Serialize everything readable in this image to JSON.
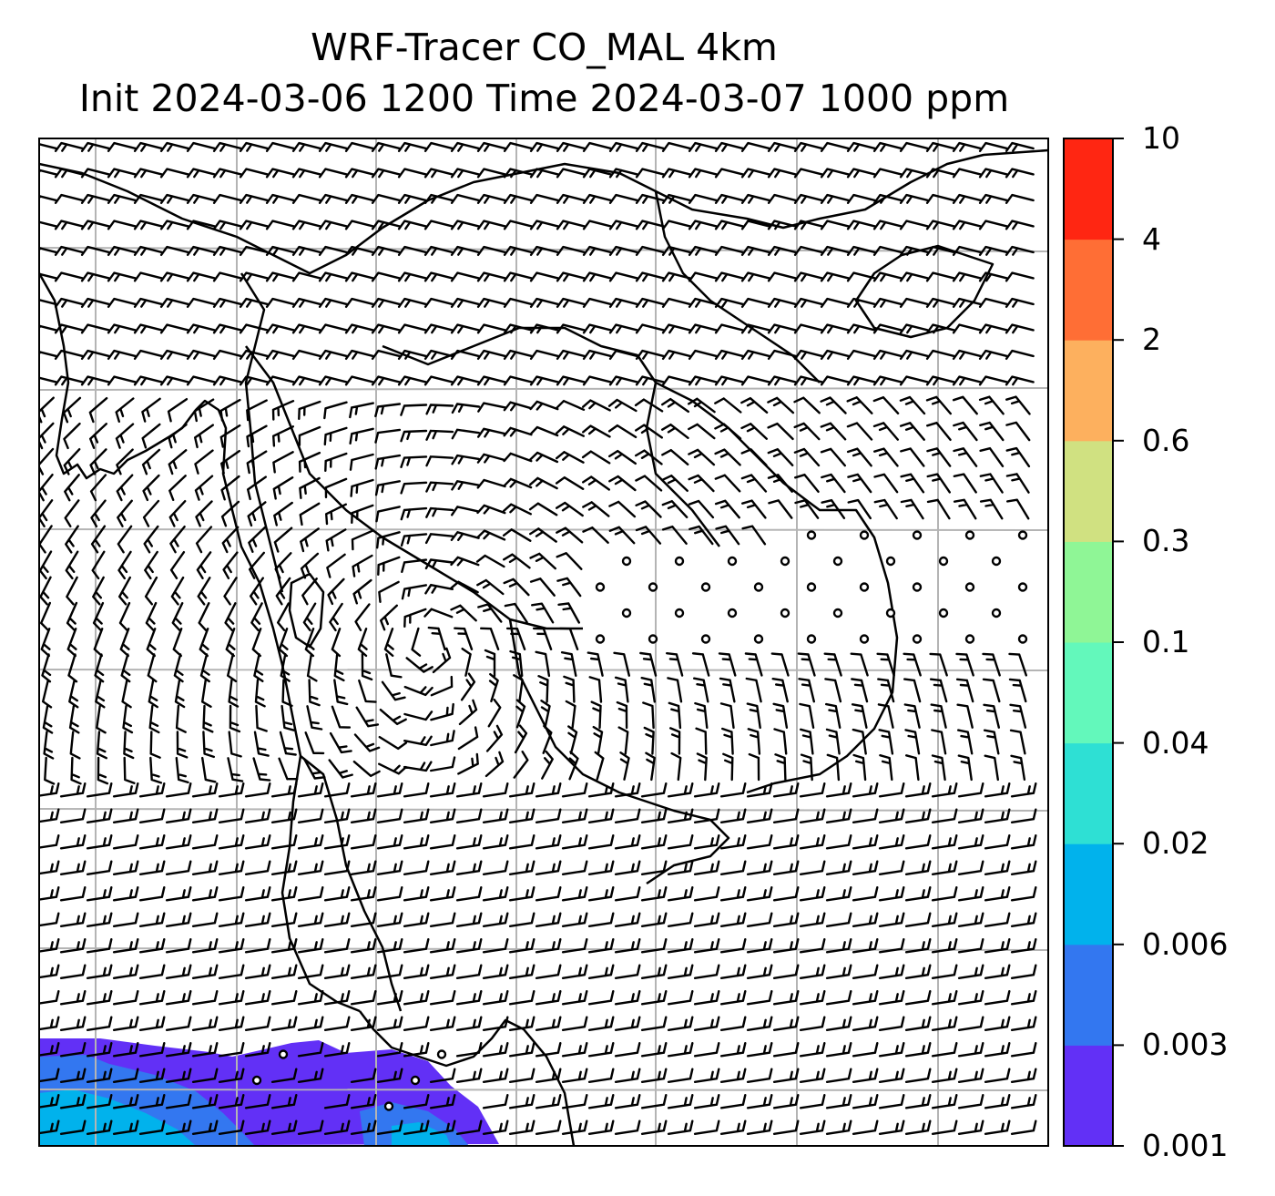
{
  "title": {
    "line1": "WRF-Tracer CO_MAL 4km",
    "line2": "Init 2024-03-06 1200 Time 2024-03-07 1000 ppm"
  },
  "colorbar": {
    "levels": [
      "0.001",
      "0.003",
      "0.006",
      "0.02",
      "0.04",
      "0.1",
      "0.3",
      "0.6",
      "2",
      "4",
      "10"
    ],
    "colors": [
      "#6230f6",
      "#3377f0",
      "#01b2ec",
      "#2ee0d4",
      "#63f8bb",
      "#8ff696",
      "#d0e181",
      "#fdb05e",
      "#ff6e35",
      "#ff2612"
    ]
  },
  "map": {
    "frame_color": "#000000",
    "gridline_color": "#b4b4b4",
    "barb_color": "#000000",
    "coastline_color": "#000000"
  }
}
